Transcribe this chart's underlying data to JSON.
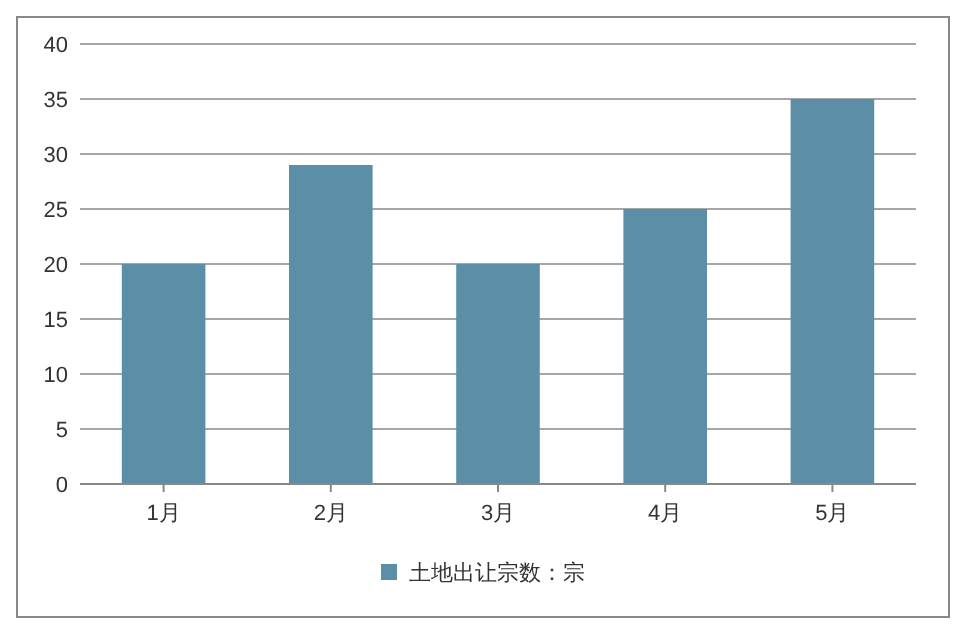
{
  "chart_data": {
    "type": "bar",
    "categories": [
      "1月",
      "2月",
      "3月",
      "4月",
      "5月"
    ],
    "series": [
      {
        "name": "土地出让宗数：宗",
        "color": "#5b8fa8",
        "values": [
          20,
          29,
          20,
          25,
          35
        ]
      }
    ],
    "ylim": [
      0,
      40
    ],
    "yticks": [
      0,
      5,
      10,
      15,
      20,
      25,
      30,
      35,
      40
    ],
    "grid": "y",
    "legend": "bottom"
  }
}
